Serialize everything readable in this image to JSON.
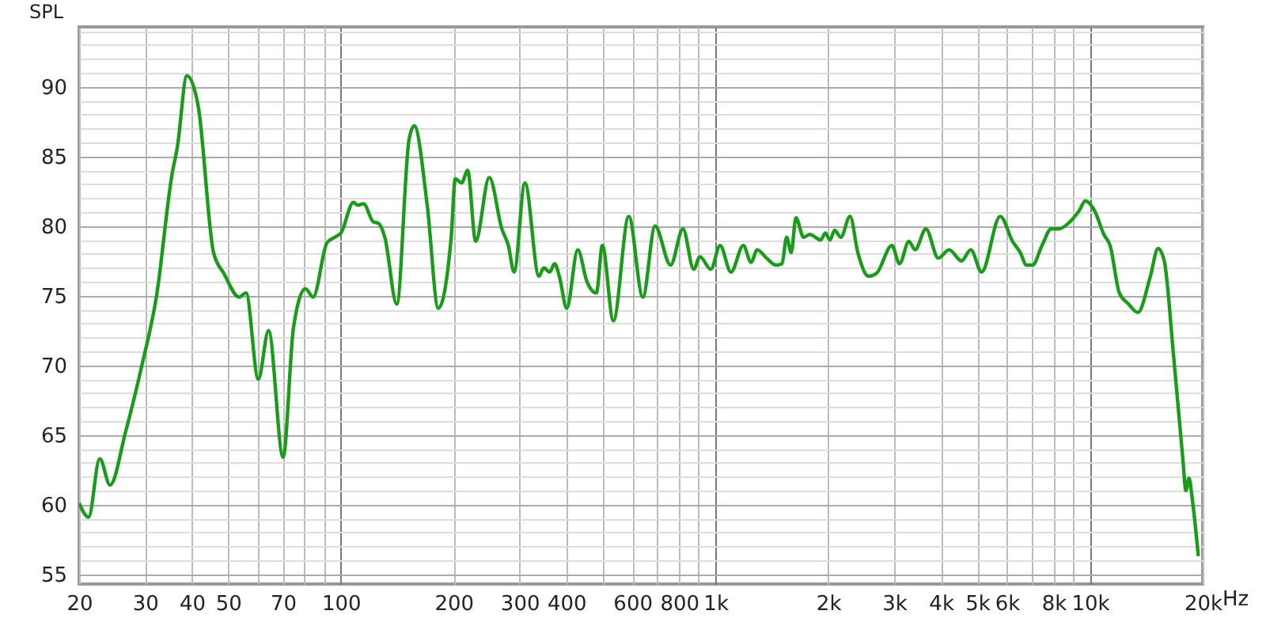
{
  "chart_data": {
    "type": "line",
    "ylabel": "SPL",
    "xlabel": "Hz",
    "xlim": [
      20,
      20000
    ],
    "ylim": [
      54.3,
      94.3
    ],
    "log": "x",
    "grid": true,
    "marker": "none",
    "line_style": "solid",
    "xticks": [
      20,
      30,
      40,
      50,
      {
        "value": 60,
        "label": null
      },
      70,
      {
        "value": 80,
        "label": null
      },
      {
        "value": 90,
        "label": null
      },
      100,
      200,
      300,
      400,
      {
        "value": 500,
        "label": null
      },
      600,
      {
        "value": 700,
        "label": null
      },
      800,
      {
        "value": 900,
        "label": null
      },
      {
        "value": 1000,
        "label": "1k"
      },
      {
        "value": 2000,
        "label": "2k"
      },
      {
        "value": 3000,
        "label": "3k"
      },
      {
        "value": 4000,
        "label": "4k"
      },
      {
        "value": 5000,
        "label": "5k"
      },
      {
        "value": 6000,
        "label": "6k"
      },
      {
        "value": 7000,
        "label": null
      },
      {
        "value": 8000,
        "label": "8k"
      },
      {
        "value": 9000,
        "label": null
      },
      {
        "value": 10000,
        "label": "10k"
      },
      {
        "value": 20000,
        "label": "20k"
      }
    ],
    "yticks": [
      55,
      {
        "value": 56,
        "label": null
      },
      {
        "value": 57,
        "label": null
      },
      {
        "value": 58,
        "label": null
      },
      {
        "value": 59,
        "label": null
      },
      60,
      {
        "value": 61,
        "label": null
      },
      {
        "value": 62,
        "label": null
      },
      {
        "value": 63,
        "label": null
      },
      {
        "value": 64,
        "label": null
      },
      65,
      {
        "value": 66,
        "label": null
      },
      {
        "value": 67,
        "label": null
      },
      {
        "value": 68,
        "label": null
      },
      {
        "value": 69,
        "label": null
      },
      70,
      {
        "value": 71,
        "label": null
      },
      {
        "value": 72,
        "label": null
      },
      {
        "value": 73,
        "label": null
      },
      {
        "value": 74,
        "label": null
      },
      75,
      {
        "value": 76,
        "label": null
      },
      {
        "value": 77,
        "label": null
      },
      {
        "value": 78,
        "label": null
      },
      {
        "value": 79,
        "label": null
      },
      80,
      {
        "value": 81,
        "label": null
      },
      {
        "value": 82,
        "label": null
      },
      {
        "value": 83,
        "label": null
      },
      {
        "value": 84,
        "label": null
      },
      85,
      {
        "value": 86,
        "label": null
      },
      {
        "value": 87,
        "label": null
      },
      {
        "value": 88,
        "label": null
      },
      {
        "value": 89,
        "label": null
      },
      90,
      {
        "value": 91,
        "label": null
      },
      {
        "value": 92,
        "label": null
      },
      {
        "value": 93,
        "label": null
      },
      {
        "value": 94,
        "label": null
      }
    ],
    "series": [
      {
        "color": "#1c9a1c",
        "x": [
          20,
          21.2,
          22.7,
          24.2,
          26.6,
          29.3,
          32.2,
          35.4,
          36.6,
          38.8,
          41.6,
          45.7,
          48.7,
          53.5,
          55.8,
          60.2,
          64.1,
          70.1,
          74.7,
          80.4,
          84.3,
          91.8,
          96.3,
          100,
          108,
          111,
          115,
          122,
          126,
          131,
          141,
          152,
          157,
          170,
          182,
          197,
          202,
          210,
          218,
          229,
          249,
          269,
          280,
          290,
          310,
          338,
          348,
          361,
          372,
          383,
          401,
          429,
          454,
          481,
          499,
          534,
          587,
          640,
          690,
          759,
          819,
          875,
          909,
          972,
          1029,
          1100,
          1187,
          1245,
          1293,
          1369,
          1450,
          1506,
          1549,
          1594,
          1640,
          1720,
          1787,
          1910,
          1965,
          2022,
          2081,
          2161,
          2288,
          2400,
          2565,
          2691,
          2959,
          3102,
          3285,
          3413,
          3648,
          3936,
          4207,
          4539,
          4806,
          5137,
          5758,
          6214,
          6516,
          6769,
          7031,
          7445,
          7882,
          8266,
          8839,
          9356,
          9719,
          10290,
          10890,
          11320,
          11980,
          12680,
          13430,
          14500,
          15200,
          15790,
          16720,
          17700,
          18040,
          18390,
          18740,
          19470
        ],
        "values": [
          60.1,
          59.1,
          63.3,
          61.4,
          65.2,
          69.8,
          75,
          83.7,
          85.7,
          90.8,
          88.6,
          78.1,
          76.6,
          74.9,
          75.2,
          69,
          72.5,
          63.4,
          72.7,
          75.5,
          74.9,
          78.8,
          79.2,
          79.5,
          81.7,
          81.5,
          81.6,
          80.3,
          80.2,
          79.2,
          74.4,
          86.2,
          87.2,
          81.5,
          74.1,
          79.2,
          83.4,
          83.1,
          84,
          78.9,
          83.5,
          79.8,
          78.6,
          76.7,
          83.1,
          76.4,
          77,
          76.7,
          77.3,
          76.4,
          74.1,
          78.3,
          76,
          75.2,
          78.6,
          73.2,
          80.7,
          74.9,
          80,
          77.2,
          79.8,
          76.9,
          77.8,
          76.9,
          78.6,
          76.7,
          78.6,
          77.4,
          78.3,
          77.7,
          77.2,
          77.3,
          79.2,
          78.1,
          80.6,
          79.2,
          79.4,
          79,
          79.5,
          79,
          79.7,
          79.2,
          80.7,
          78.1,
          76.4,
          76.6,
          78.6,
          77.3,
          78.9,
          78.3,
          79.8,
          77.7,
          78.3,
          77.5,
          78.3,
          76.7,
          80.7,
          78.9,
          78.1,
          77.2,
          77.2,
          78.6,
          79.8,
          79.8,
          80.3,
          81.1,
          81.8,
          81.1,
          79.4,
          78.6,
          75.2,
          74.4,
          73.8,
          76.4,
          78.4,
          77.5,
          70.7,
          63.3,
          61,
          61.9,
          60.5,
          56.3
        ]
      }
    ]
  }
}
